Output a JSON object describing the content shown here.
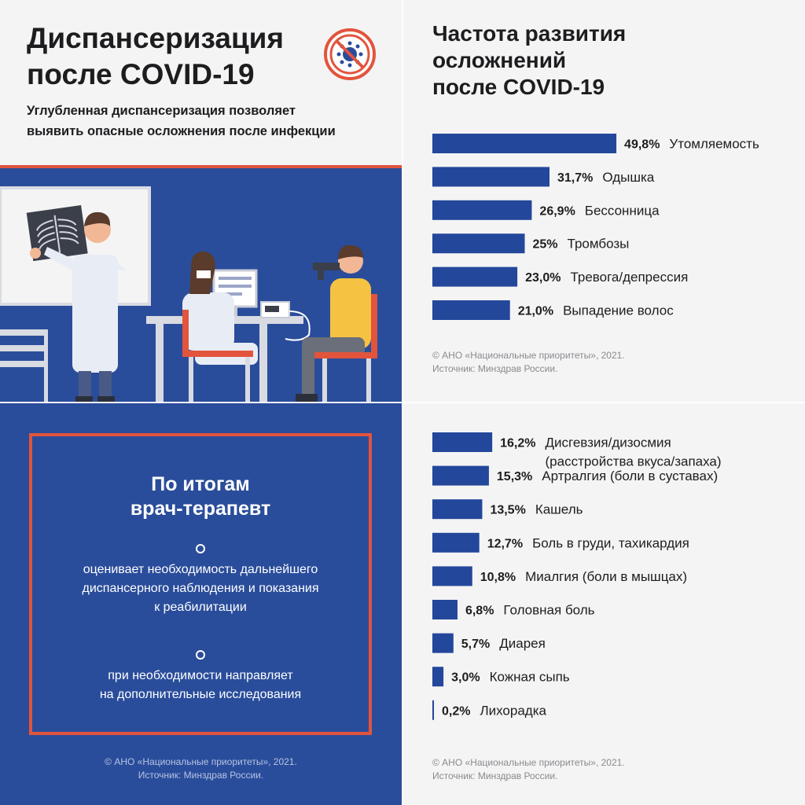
{
  "panel1": {
    "title_lines": [
      "Диспансеризация",
      "после COVID-19"
    ],
    "subtitle_lines": [
      "Углубленная диспансеризация позволяет",
      "выявить опасные осложнения после инфекции"
    ],
    "logo_icon": "stop-coronavirus-logo-icon"
  },
  "panel2": {
    "title_lines": [
      "Частота развития",
      "осложнений",
      "после COVID-19"
    ],
    "source_lines": [
      "© АНО «Национальные приоритеты», 2021.",
      "Источник: Минздрав России."
    ]
  },
  "panel3": {
    "title_lines": [
      "По итогам",
      "врач-терапевт"
    ],
    "item1_lines": [
      "оценивает необходимость дальнейшего",
      "диспансерного наблюдения и показания",
      "к реабилитации"
    ],
    "item2_lines": [
      "при необходимости направляет",
      "на дополнительные исследования"
    ],
    "source_lines": [
      "© АНО «Национальные приоритеты», 2021.",
      "Источник: Минздрав России."
    ]
  },
  "panel4": {
    "source_lines": [
      "© АНО «Национальные приоритеты», 2021.",
      "Источник: Минздрав России."
    ]
  },
  "colors": {
    "bar": "#23479a",
    "accent": "#e2543c",
    "blue_bg": "#2a4d9b"
  },
  "chart_data": [
    {
      "type": "bar",
      "orientation": "horizontal",
      "title": "Частота развития осложнений после COVID-19",
      "unit": "%",
      "categories": [
        "Утомляемость",
        "Одышка",
        "Бессонница",
        "Тромбозы",
        "Тревога/депрессия",
        "Выпадение волос"
      ],
      "values": [
        49.8,
        31.7,
        26.9,
        25,
        23.0,
        21.0
      ],
      "value_labels": [
        "49,8%",
        "31,7%",
        "26,9%",
        "25%",
        "23,0%",
        "21,0%"
      ]
    },
    {
      "type": "bar",
      "orientation": "horizontal",
      "unit": "%",
      "categories": [
        [
          "Дисгевзия/дизосмия",
          "(расстройства вкуса/запаха)"
        ],
        [
          "Артралгия (боли в суставах)"
        ],
        [
          "Кашель"
        ],
        [
          "Боль в груди, тахикардия"
        ],
        [
          "Миалгия (боли в мышцах)"
        ],
        [
          "Головная боль"
        ],
        [
          "Диарея"
        ],
        [
          "Кожная сыпь"
        ],
        [
          "Лихорадка"
        ]
      ],
      "values": [
        16.2,
        15.3,
        13.5,
        12.7,
        10.8,
        6.8,
        5.7,
        3.0,
        0.2
      ],
      "value_labels": [
        "16,2%",
        "15,3%",
        "13,5%",
        "12,7%",
        "10,8%",
        "6,8%",
        "5,7%",
        "3,0%",
        "0,2%"
      ]
    }
  ]
}
